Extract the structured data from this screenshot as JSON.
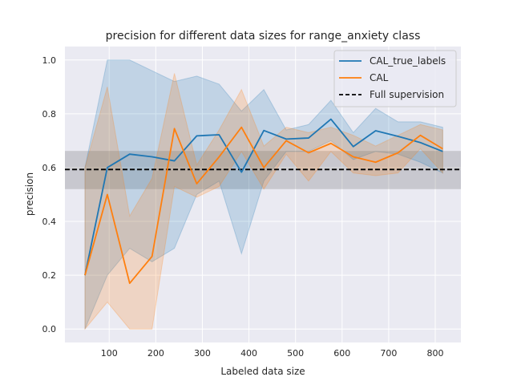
{
  "chart_data": {
    "type": "line",
    "title": "precision for different data sizes for range_anxiety class",
    "xlabel": "Labeled data size",
    "ylabel": "precision",
    "xlim": [
      5,
      855
    ],
    "ylim": [
      -0.05,
      1.05
    ],
    "xticks": [
      100,
      200,
      300,
      400,
      500,
      600,
      700,
      800
    ],
    "yticks": [
      0.0,
      0.2,
      0.4,
      0.6,
      0.8,
      1.0
    ],
    "grid": true,
    "legend_position": "top-right",
    "x": [
      48,
      96,
      144,
      192,
      240,
      288,
      336,
      384,
      432,
      480,
      528,
      576,
      624,
      672,
      720,
      768,
      816
    ],
    "series": [
      {
        "name": "CAL_true_labels",
        "color": "#1f77b4",
        "values": [
          0.2,
          0.6,
          0.65,
          0.64,
          0.625,
          0.718,
          0.722,
          0.583,
          0.738,
          0.706,
          0.71,
          0.78,
          0.678,
          0.737,
          0.716,
          0.693,
          0.66
        ],
        "band_low": [
          0.0,
          0.2,
          0.3,
          0.25,
          0.3,
          0.5,
          0.55,
          0.28,
          0.55,
          0.66,
          0.66,
          0.7,
          0.63,
          0.66,
          0.65,
          0.62,
          0.58
        ],
        "band_high": [
          0.6,
          1.0,
          1.0,
          0.96,
          0.92,
          0.94,
          0.91,
          0.81,
          0.89,
          0.74,
          0.76,
          0.85,
          0.73,
          0.82,
          0.77,
          0.77,
          0.75
        ]
      },
      {
        "name": "CAL",
        "color": "#ff7f0e",
        "values": [
          0.2,
          0.5,
          0.17,
          0.27,
          0.745,
          0.54,
          0.64,
          0.75,
          0.6,
          0.7,
          0.655,
          0.69,
          0.64,
          0.62,
          0.655,
          0.72,
          0.67
        ],
        "band_low": [
          0.0,
          0.1,
          0.0,
          0.0,
          0.53,
          0.49,
          0.53,
          0.66,
          0.52,
          0.65,
          0.55,
          0.66,
          0.58,
          0.57,
          0.58,
          0.67,
          0.58
        ],
        "band_high": [
          0.6,
          0.9,
          0.42,
          0.56,
          0.95,
          0.61,
          0.74,
          0.89,
          0.68,
          0.75,
          0.73,
          0.75,
          0.72,
          0.68,
          0.72,
          0.76,
          0.74
        ]
      }
    ],
    "reference": {
      "name": "Full supervision",
      "color": "#000000",
      "value": 0.593,
      "band_low": 0.52,
      "band_high": 0.662
    }
  }
}
